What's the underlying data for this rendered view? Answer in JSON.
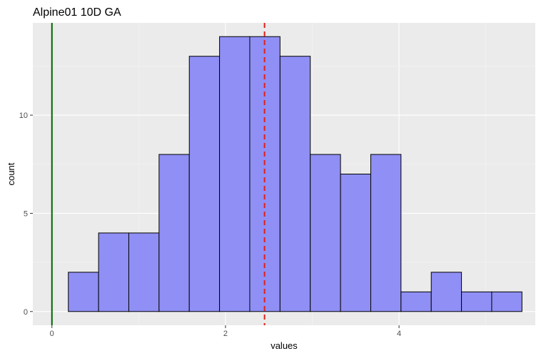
{
  "chart_data": {
    "type": "bar",
    "title": "Alpine01 10D GA",
    "xlabel": "values",
    "ylabel": "count",
    "xlim": [
      -0.22,
      5.57
    ],
    "ylim": [
      -0.7,
      14.7
    ],
    "x_ticks": [
      0,
      2,
      4
    ],
    "x_tick_labels": [
      "0",
      "2",
      "4"
    ],
    "y_ticks": [
      0,
      5,
      10
    ],
    "y_tick_labels": [
      "0",
      "5",
      "10"
    ],
    "bin_width": 0.3485,
    "bins": [
      {
        "start": -0.1595,
        "count": 0
      },
      {
        "start": 0.189,
        "count": 2
      },
      {
        "start": 0.5375,
        "count": 4
      },
      {
        "start": 0.886,
        "count": 4
      },
      {
        "start": 1.2345,
        "count": 8
      },
      {
        "start": 1.583,
        "count": 13
      },
      {
        "start": 1.9315,
        "count": 14
      },
      {
        "start": 2.28,
        "count": 14
      },
      {
        "start": 2.6285,
        "count": 13
      },
      {
        "start": 2.977,
        "count": 8
      },
      {
        "start": 3.3255,
        "count": 7
      },
      {
        "start": 3.674,
        "count": 8
      },
      {
        "start": 4.0225,
        "count": 1
      },
      {
        "start": 4.371,
        "count": 2
      },
      {
        "start": 4.7195,
        "count": 1
      },
      {
        "start": 5.068,
        "count": 1
      }
    ],
    "reference_lines": [
      {
        "x": 0,
        "color": "#006400",
        "style": "solid"
      },
      {
        "x": 2.45,
        "color": "#e0201b",
        "style": "dashed"
      }
    ],
    "grid": true,
    "legend": "none",
    "bar_color": "#8f8ff5"
  }
}
